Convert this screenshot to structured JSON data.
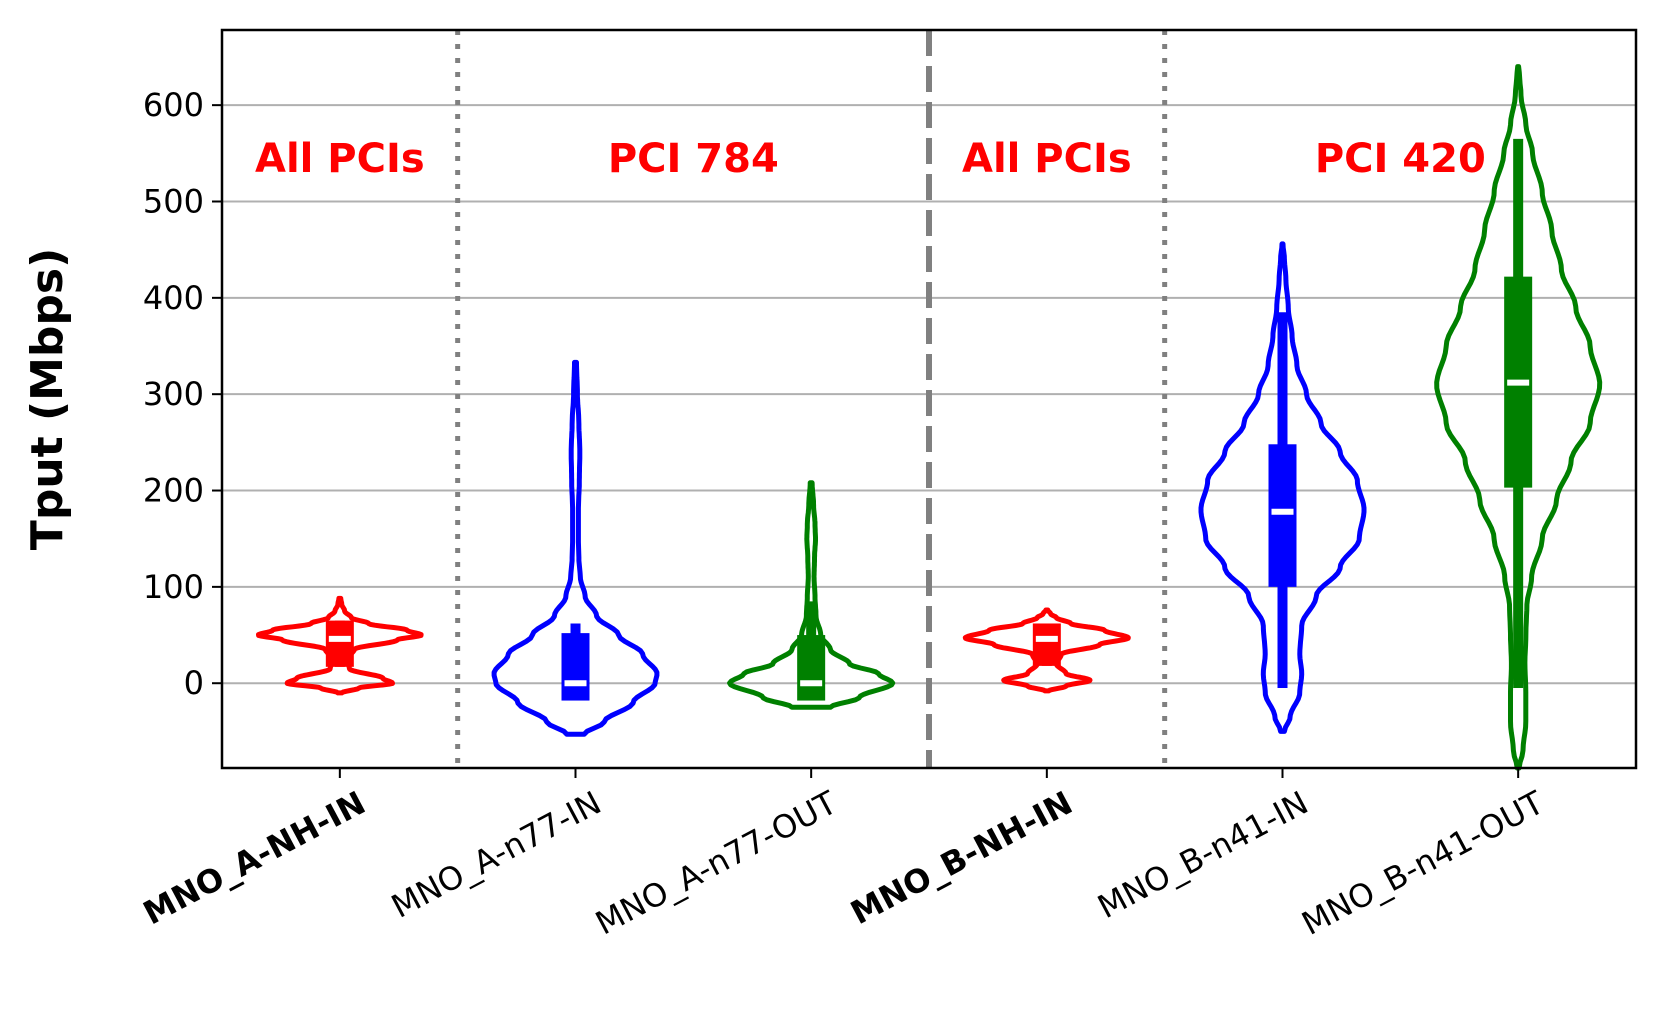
{
  "chart_data": {
    "type": "violin",
    "title": "",
    "xlabel": "",
    "ylabel": "Tput (Mbps)",
    "ylim": [
      -88,
      678
    ],
    "yticks": [
      0,
      100,
      200,
      300,
      400,
      500,
      600
    ],
    "grid": "horizontal",
    "categories": [
      "MNO_A-NH-IN",
      "MNO_A-n77-IN",
      "MNO_A-n77-OUT",
      "MNO_B-NH-IN",
      "MNO_B-n41-IN",
      "MNO_B-n41-OUT"
    ],
    "bold_categories": [
      "MNO_A-NH-IN",
      "MNO_B-NH-IN"
    ],
    "group_labels": [
      "All PCIs",
      "PCI 784",
      "All PCIs",
      "PCI 420"
    ],
    "group_label_color": "#ff0000",
    "separators": [
      {
        "after_category": 1,
        "style": "dotted"
      },
      {
        "after_category": 3,
        "style": "dashed"
      },
      {
        "after_category": 4,
        "style": "dotted"
      }
    ],
    "series": [
      {
        "name": "MNO_A-NH-IN",
        "color": "#ff0000",
        "min": -10,
        "max": 88,
        "q1": 17,
        "q3": 65,
        "median": 46,
        "profile": [
          [
            -10,
            0.02
          ],
          [
            -5,
            0.2
          ],
          [
            0,
            0.55
          ],
          [
            5,
            0.45
          ],
          [
            15,
            0.1
          ],
          [
            25,
            0.07
          ],
          [
            35,
            0.15
          ],
          [
            45,
            0.6
          ],
          [
            50,
            0.85
          ],
          [
            55,
            0.7
          ],
          [
            62,
            0.3
          ],
          [
            68,
            0.12
          ],
          [
            75,
            0.05
          ],
          [
            82,
            0.02
          ],
          [
            88,
            0.01
          ]
        ]
      },
      {
        "name": "MNO_A-n77-IN",
        "color": "#0000ff",
        "min": -53,
        "max": 333,
        "q1": -18,
        "q3": 52,
        "whisker_low": -18,
        "whisker_high": 62,
        "median": 0,
        "profile": [
          [
            -53,
            0.09
          ],
          [
            -40,
            0.3
          ],
          [
            -20,
            0.6
          ],
          [
            0,
            0.83
          ],
          [
            10,
            0.85
          ],
          [
            30,
            0.7
          ],
          [
            50,
            0.45
          ],
          [
            70,
            0.22
          ],
          [
            90,
            0.1
          ],
          [
            110,
            0.05
          ],
          [
            130,
            0.035
          ],
          [
            150,
            0.03
          ],
          [
            180,
            0.03
          ],
          [
            210,
            0.04
          ],
          [
            240,
            0.045
          ],
          [
            270,
            0.035
          ],
          [
            300,
            0.02
          ],
          [
            333,
            0.01
          ]
        ]
      },
      {
        "name": "MNO_A-n77-OUT",
        "color": "#008000",
        "min": -25,
        "max": 208,
        "q1": -18,
        "q3": 50,
        "whisker_low": -18,
        "whisker_high": 85,
        "median": 0,
        "profile": [
          [
            -25,
            0.2
          ],
          [
            -15,
            0.5
          ],
          [
            0,
            0.85
          ],
          [
            10,
            0.7
          ],
          [
            20,
            0.4
          ],
          [
            35,
            0.2
          ],
          [
            50,
            0.1
          ],
          [
            70,
            0.05
          ],
          [
            90,
            0.04
          ],
          [
            110,
            0.03
          ],
          [
            130,
            0.035
          ],
          [
            150,
            0.045
          ],
          [
            165,
            0.04
          ],
          [
            185,
            0.025
          ],
          [
            208,
            0.01
          ]
        ]
      },
      {
        "name": "MNO_B-NH-IN",
        "color": "#ff0000",
        "min": -8,
        "max": 76,
        "q1": 18,
        "q3": 62,
        "median": 46,
        "profile": [
          [
            -8,
            0.02
          ],
          [
            -3,
            0.2
          ],
          [
            3,
            0.45
          ],
          [
            10,
            0.2
          ],
          [
            20,
            0.1
          ],
          [
            30,
            0.15
          ],
          [
            40,
            0.55
          ],
          [
            47,
            0.85
          ],
          [
            55,
            0.6
          ],
          [
            62,
            0.25
          ],
          [
            68,
            0.1
          ],
          [
            72,
            0.04
          ],
          [
            76,
            0.01
          ]
        ]
      },
      {
        "name": "MNO_B-n41-IN",
        "color": "#0000ff",
        "min": -50,
        "max": 456,
        "q1": 100,
        "q3": 248,
        "whisker_low": -5,
        "whisker_high": 385,
        "median": 178,
        "profile": [
          [
            -50,
            0.02
          ],
          [
            -35,
            0.08
          ],
          [
            -10,
            0.18
          ],
          [
            10,
            0.2
          ],
          [
            30,
            0.18
          ],
          [
            60,
            0.2
          ],
          [
            90,
            0.35
          ],
          [
            120,
            0.6
          ],
          [
            150,
            0.8
          ],
          [
            180,
            0.85
          ],
          [
            210,
            0.78
          ],
          [
            240,
            0.6
          ],
          [
            270,
            0.4
          ],
          [
            300,
            0.25
          ],
          [
            330,
            0.15
          ],
          [
            360,
            0.1
          ],
          [
            390,
            0.06
          ],
          [
            420,
            0.035
          ],
          [
            440,
            0.02
          ],
          [
            456,
            0.005
          ]
        ]
      },
      {
        "name": "MNO_B-n41-OUT",
        "color": "#008000",
        "min": -88,
        "max": 640,
        "q1": 203,
        "q3": 422,
        "whisker_low": -5,
        "whisker_high": 565,
        "median": 312,
        "profile": [
          [
            -88,
            0.01
          ],
          [
            -70,
            0.05
          ],
          [
            -40,
            0.08
          ],
          [
            -10,
            0.08
          ],
          [
            20,
            0.07
          ],
          [
            50,
            0.08
          ],
          [
            80,
            0.09
          ],
          [
            110,
            0.14
          ],
          [
            150,
            0.25
          ],
          [
            190,
            0.4
          ],
          [
            230,
            0.55
          ],
          [
            270,
            0.75
          ],
          [
            310,
            0.85
          ],
          [
            350,
            0.75
          ],
          [
            390,
            0.6
          ],
          [
            430,
            0.45
          ],
          [
            470,
            0.35
          ],
          [
            510,
            0.25
          ],
          [
            550,
            0.15
          ],
          [
            580,
            0.08
          ],
          [
            610,
            0.03
          ],
          [
            630,
            0.015
          ],
          [
            640,
            0.005
          ]
        ]
      }
    ]
  }
}
